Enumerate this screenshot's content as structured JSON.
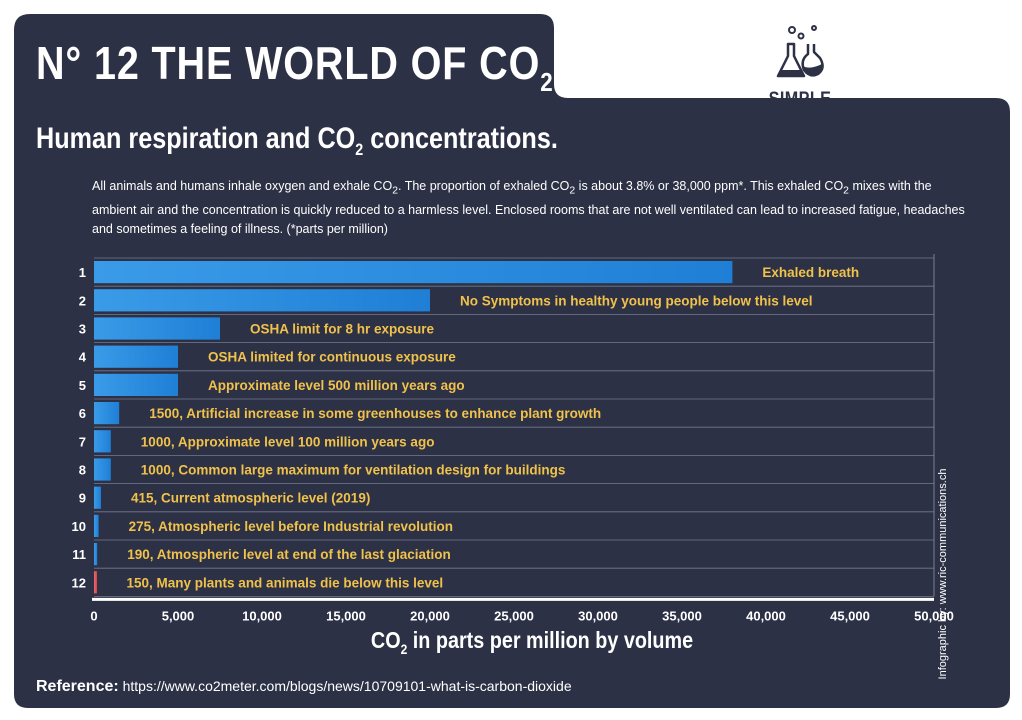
{
  "header": {
    "title_main": "N° 12  THE WORLD OF CO",
    "title_sub": "2",
    "brand": "SIMPLE SCIENCE"
  },
  "subtitle": {
    "main": "Human respiration and CO",
    "sub": "2",
    "end": " concentrations."
  },
  "intro": {
    "line1_a": "All animals and humans inhale oxygen and exhale CO",
    "line1_sub": "2",
    "line1_b": ". The proportion of exhaled CO",
    "line1_sub2": "2",
    "line1_c": " is about 3.8% or 38,000 ppm*. This exhaled CO",
    "line1_sub3": "2",
    "line1_d": " mixes with the ambient air and the concentration is quickly reduced to a harmless level. Enclosed rooms that are not well ventilated can lead to increased fatigue, headaches and sometimes a feeling of illness. (*parts per million)"
  },
  "chart_data": {
    "type": "bar",
    "orientation": "horizontal",
    "categories": [
      "1",
      "2",
      "3",
      "4",
      "5",
      "6",
      "7",
      "8",
      "9",
      "10",
      "11",
      "12"
    ],
    "values": [
      38000,
      20000,
      7500,
      5000,
      5000,
      1500,
      1000,
      1000,
      415,
      275,
      190,
      150
    ],
    "bar_labels": [
      "Exhaled breath",
      "No Symptoms in healthy young people below this level",
      "OSHA limit for 8 hr exposure",
      "OSHA limited for continuous exposure",
      "Approximate level 500 million years ago",
      "1500, Artificial increase in some greenhouses to enhance plant growth",
      "1000, Approximate level 100 million years ago",
      "1000, Common large maximum for ventilation design for buildings",
      "415, Current atmospheric level (2019)",
      "275, Atmospheric level before Industrial revolution",
      "190, Atmospheric level at end of the last glaciation",
      "150, Many plants and animals die below this level"
    ],
    "highlight_index": 11,
    "xlim": [
      0,
      50000
    ],
    "xticks": [
      "0",
      "5,000",
      "10,000",
      "15,000",
      "20,000",
      "25,000",
      "30,000",
      "35,000",
      "40,000",
      "45,000",
      "50,000"
    ],
    "xlabel_main": "CO",
    "xlabel_sub": "2",
    "xlabel_end": " in parts per million by volume",
    "grid": true,
    "colors": {
      "bar": "#1f7fd6",
      "highlight": "#d9414a",
      "label": "#f0c24b",
      "background": "#2d3145"
    }
  },
  "footer": {
    "reference_label": "Reference:",
    "reference_url": "https://www.co2meter.com/blogs/news/10709101-what-is-carbon-dioxide",
    "credit": "Infographic by: www.ric-communications.ch"
  }
}
